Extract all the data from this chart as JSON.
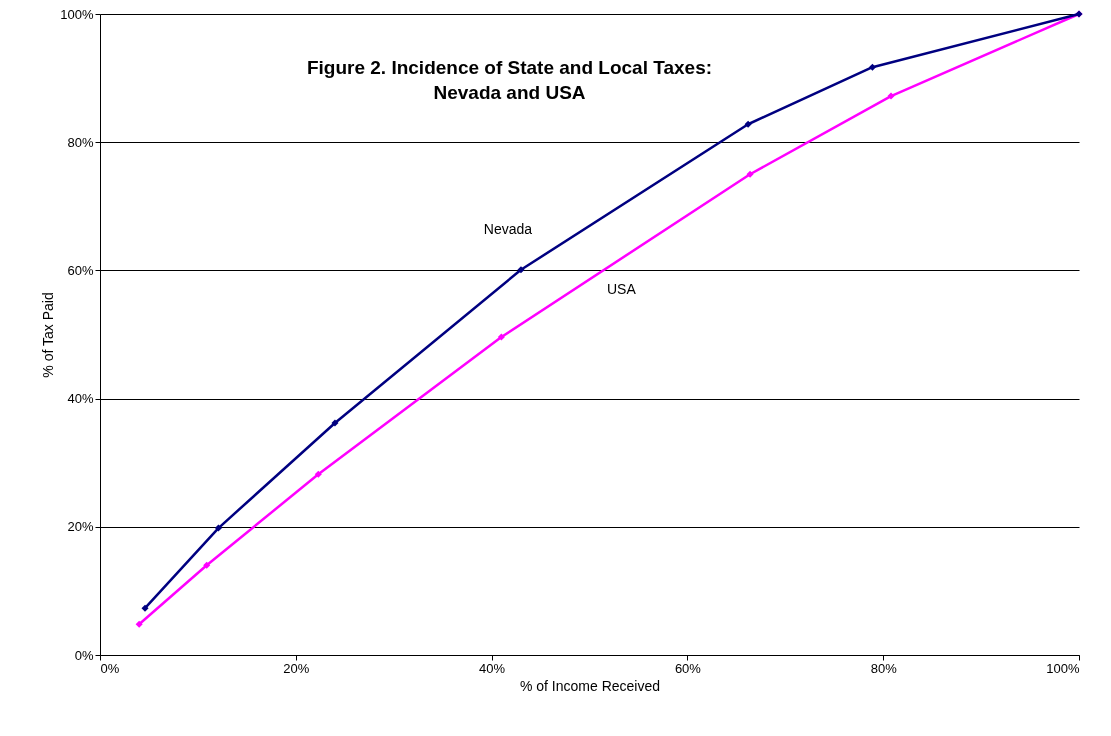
{
  "chart_data": {
    "type": "line",
    "title": "Figure 2. Incidence of State and Local Taxes:\nNevada and USA",
    "xlabel": "% of  Income Received",
    "ylabel": "% of  Tax Paid",
    "series": [
      {
        "name": "Nevada",
        "color": "#000080",
        "x": [
          4.6,
          12.1,
          24.0,
          43.0,
          66.2,
          78.9,
          100
        ],
        "values": [
          7.3,
          19.8,
          36.2,
          60.1,
          82.8,
          91.7,
          100
        ]
      },
      {
        "name": "USA",
        "color": "#ff00ff",
        "x": [
          4.0,
          10.9,
          22.3,
          41.0,
          66.4,
          80.8,
          100
        ],
        "values": [
          4.8,
          14.0,
          28.2,
          49.6,
          75.0,
          87.2,
          100
        ]
      }
    ],
    "xlim": [
      0,
      100
    ],
    "ylim": [
      0,
      100
    ],
    "xticks": [
      {
        "value": 0,
        "label": "0%"
      },
      {
        "value": 20,
        "label": "20%"
      },
      {
        "value": 40,
        "label": "40%"
      },
      {
        "value": 60,
        "label": "60%"
      },
      {
        "value": 80,
        "label": "80%"
      },
      {
        "value": 100,
        "label": "100%"
      }
    ],
    "yticks": [
      {
        "value": 0,
        "label": "0%"
      },
      {
        "value": 20,
        "label": "20%"
      },
      {
        "value": 40,
        "label": "40%"
      },
      {
        "value": 60,
        "label": "60%"
      },
      {
        "value": 80,
        "label": "80%"
      },
      {
        "value": 100,
        "label": "100%"
      }
    ],
    "grid": "y",
    "marker": "diamond",
    "line_style": "solid"
  }
}
